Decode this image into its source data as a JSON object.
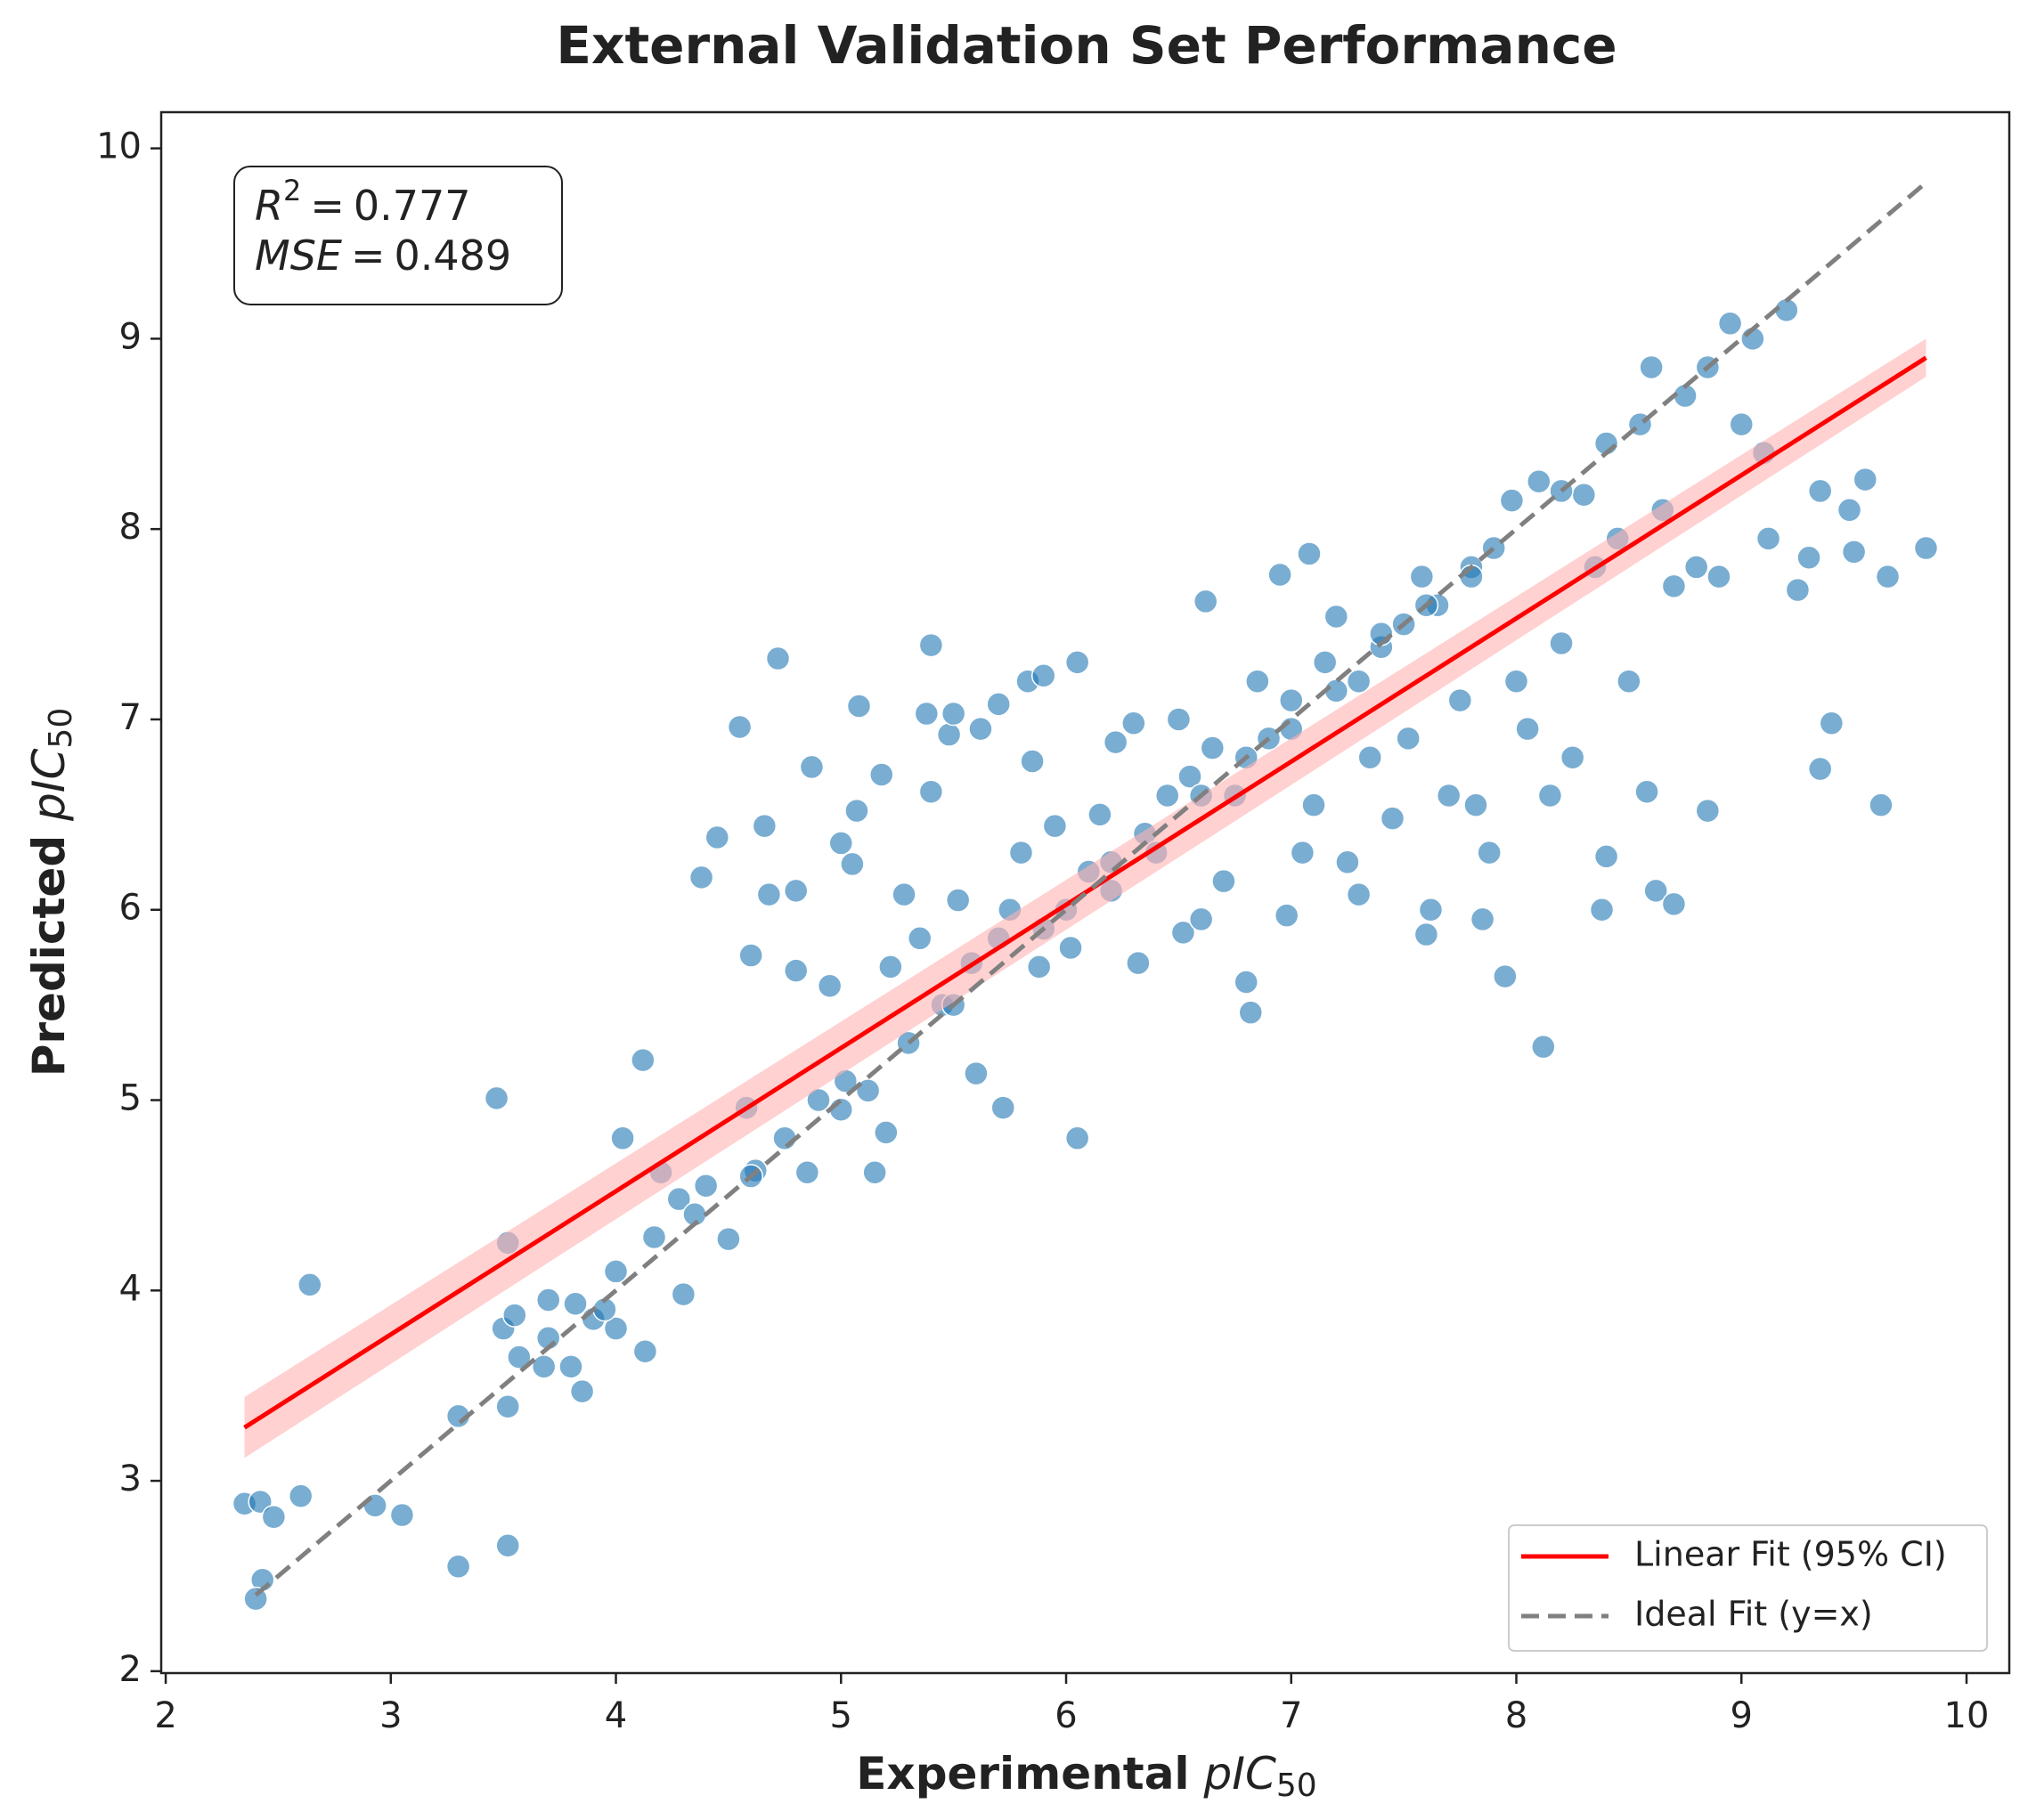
{
  "chart_data": {
    "type": "scatter",
    "title": "External Validation Set Performance",
    "x_label": {
      "text": "Experimental",
      "symbol": "pIC",
      "subscript": "50"
    },
    "y_label": {
      "text": "Predicted",
      "symbol": "pIC",
      "subscript": "50"
    },
    "xlim": [
      1.98,
      10.19
    ],
    "ylim": [
      1.99,
      10.19
    ],
    "xticks": [
      2,
      3,
      4,
      5,
      6,
      7,
      8,
      9,
      10
    ],
    "yticks": [
      2,
      3,
      4,
      5,
      6,
      7,
      8,
      9,
      10
    ],
    "grid": false,
    "annotation": [
      {
        "symbol": "R",
        "superscript": "2",
        "operator": "=",
        "value": 0.777
      },
      {
        "symbol": "MSE",
        "operator": "=",
        "value": 0.489
      }
    ],
    "series": [
      {
        "color": "#1f77b4",
        "x": [
          2.35,
          2.42,
          2.48,
          2.6,
          2.43,
          2.4,
          2.64,
          2.93,
          3.05,
          3.3,
          3.3,
          3.47,
          3.52,
          3.52,
          3.52,
          3.5,
          3.55,
          3.57,
          3.68,
          3.7,
          3.8,
          3.85,
          3.82,
          3.9,
          4.0,
          4.0,
          4.03,
          4.12,
          4.13,
          4.17,
          4.2,
          4.3,
          4.28,
          4.35,
          4.4,
          4.38,
          4.45,
          4.5,
          4.55,
          4.58,
          4.6,
          4.62,
          4.66,
          4.68,
          4.72,
          4.75,
          4.8,
          4.8,
          4.85,
          4.87,
          4.9,
          4.95,
          5.0,
          5.02,
          5.05,
          5.07,
          5.08,
          5.12,
          5.15,
          5.18,
          5.2,
          5.22,
          5.28,
          5.3,
          5.35,
          5.38,
          5.4,
          5.4,
          5.45,
          5.48,
          5.5,
          5.52,
          5.58,
          5.6,
          5.62,
          5.7,
          5.7,
          5.72,
          5.75,
          5.8,
          5.83,
          5.85,
          5.88,
          5.9,
          5.95,
          6.0,
          6.02,
          6.05,
          6.05,
          6.1,
          6.15,
          6.2,
          6.22,
          6.3,
          6.32,
          6.35,
          6.4,
          6.45,
          6.5,
          6.52,
          6.55,
          6.6,
          6.62,
          6.65,
          6.7,
          6.75,
          6.8,
          6.82,
          6.85,
          6.9,
          6.95,
          6.98,
          7.0,
          7.05,
          7.08,
          7.1,
          7.15,
          7.2,
          7.25,
          7.3,
          7.3,
          7.35,
          7.4,
          7.45,
          7.5,
          7.52,
          7.58,
          7.6,
          7.62,
          7.65,
          7.7,
          7.75,
          7.8,
          7.82,
          7.85,
          7.88,
          7.9,
          7.95,
          7.98,
          8.0,
          8.05,
          8.1,
          8.12,
          8.15,
          8.2,
          8.25,
          8.3,
          8.35,
          8.38,
          8.4,
          8.4,
          8.45,
          8.5,
          8.55,
          8.58,
          8.6,
          8.62,
          8.65,
          8.7,
          8.7,
          8.75,
          8.8,
          8.85,
          8.85,
          8.9,
          8.95,
          9.0,
          9.05,
          9.1,
          9.12,
          9.2,
          9.25,
          9.3,
          9.35,
          9.35,
          9.4,
          9.48,
          9.5,
          9.55,
          9.62,
          9.65,
          9.82,
          5.5,
          5.9,
          6.2,
          6.6,
          7.0,
          7.4,
          7.8,
          8.2,
          4.6,
          5.0,
          3.7,
          3.95,
          6.8,
          7.2,
          7.6
        ],
        "y": [
          2.88,
          2.89,
          2.81,
          2.92,
          2.48,
          2.38,
          4.03,
          2.87,
          2.82,
          2.55,
          3.34,
          5.01,
          4.25,
          3.39,
          2.66,
          3.8,
          3.87,
          3.65,
          3.6,
          3.95,
          3.6,
          3.47,
          3.93,
          3.85,
          3.8,
          4.1,
          4.8,
          5.21,
          3.68,
          4.28,
          4.62,
          3.98,
          4.48,
          4.4,
          4.55,
          6.17,
          6.38,
          4.27,
          6.96,
          4.96,
          5.76,
          4.63,
          6.44,
          6.08,
          7.32,
          4.8,
          5.68,
          6.1,
          4.62,
          6.75,
          5.0,
          5.6,
          6.35,
          5.1,
          6.24,
          6.52,
          7.07,
          5.05,
          4.62,
          6.71,
          4.83,
          5.7,
          6.08,
          5.3,
          5.85,
          7.03,
          6.62,
          7.39,
          5.5,
          6.92,
          7.03,
          6.05,
          5.72,
          5.14,
          6.95,
          5.85,
          7.08,
          4.96,
          6.0,
          6.3,
          7.2,
          6.78,
          5.7,
          7.23,
          6.44,
          6.0,
          5.8,
          4.8,
          7.3,
          6.2,
          6.5,
          6.1,
          6.88,
          6.98,
          5.72,
          6.4,
          6.3,
          6.6,
          7.0,
          5.88,
          6.7,
          5.95,
          7.62,
          6.85,
          6.15,
          6.6,
          5.62,
          5.46,
          7.2,
          6.9,
          7.76,
          5.97,
          7.1,
          6.3,
          7.87,
          6.55,
          7.3,
          7.54,
          6.25,
          6.08,
          7.2,
          6.8,
          7.38,
          6.48,
          7.5,
          6.9,
          7.75,
          5.87,
          6.0,
          7.6,
          6.6,
          7.1,
          7.8,
          6.55,
          5.95,
          6.3,
          7.9,
          5.65,
          8.15,
          7.2,
          6.95,
          8.25,
          5.28,
          6.6,
          7.4,
          6.8,
          8.18,
          7.8,
          6.0,
          8.45,
          6.28,
          7.95,
          7.2,
          8.55,
          6.62,
          8.85,
          6.1,
          8.1,
          6.03,
          7.7,
          8.7,
          7.8,
          8.85,
          6.52,
          7.75,
          9.08,
          8.55,
          9.0,
          8.4,
          7.95,
          9.15,
          7.68,
          7.85,
          8.2,
          6.74,
          6.98,
          8.1,
          7.88,
          8.26,
          6.55,
          7.75,
          7.9,
          5.5,
          5.9,
          6.25,
          6.6,
          6.95,
          7.45,
          7.75,
          8.2,
          4.6,
          4.95,
          3.75,
          3.9,
          6.8,
          7.15,
          7.6
        ]
      }
    ],
    "fit": {
      "name": "Linear Fit (95% CI)",
      "color": "#ff0000",
      "band_color": "#ffb3b3",
      "x": [
        2.35,
        9.82
      ],
      "y": [
        3.28,
        8.9
      ],
      "ci_lower": [
        3.12,
        8.8
      ],
      "ci_upper": [
        3.44,
        9.0
      ]
    },
    "ideal": {
      "name": "Ideal Fit (y=x)",
      "color": "#808080",
      "x": [
        2.4,
        9.82
      ],
      "y": [
        2.4,
        9.82
      ]
    },
    "legend": "lower right"
  }
}
